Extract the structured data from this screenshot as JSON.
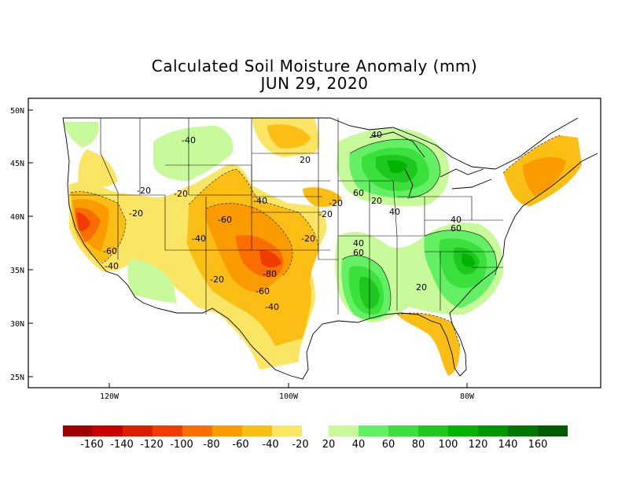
{
  "title": "Calculated Soil Moisture Anomaly (mm)",
  "date": "JUN 29, 2020",
  "lat_labels": [
    "50N",
    "45N",
    "40N",
    "35N",
    "30N",
    "25N"
  ],
  "lon_labels": [
    "120W",
    "100W",
    "80W"
  ],
  "contour_labels": [
    "-40",
    "-20",
    "-20",
    "-20",
    "-40",
    "-60",
    "-40",
    "-60",
    "-40",
    "-20",
    "-80",
    "-60",
    "-40",
    "-20",
    "20",
    "40",
    "60",
    "20",
    "40",
    "40",
    "60",
    "40",
    "60",
    "20",
    "-20",
    "-20"
  ],
  "legend": {
    "dry_labels": [
      "-160",
      "-140",
      "-120",
      "-100",
      "-80",
      "-60",
      "-40",
      "-20"
    ],
    "wet_labels": [
      "20",
      "40",
      "60",
      "80",
      "100",
      "120",
      "140",
      "160"
    ],
    "dry_colors": [
      "#a00000",
      "#c80000",
      "#dc1e00",
      "#f03c00",
      "#fa6e00",
      "#fa9c00",
      "#fabe14",
      "#fae664"
    ],
    "wet_colors": [
      "#c8fa9c",
      "#64f064",
      "#3ce03c",
      "#1ec81e",
      "#00b400",
      "#009600",
      "#007800",
      "#005a00"
    ]
  }
}
